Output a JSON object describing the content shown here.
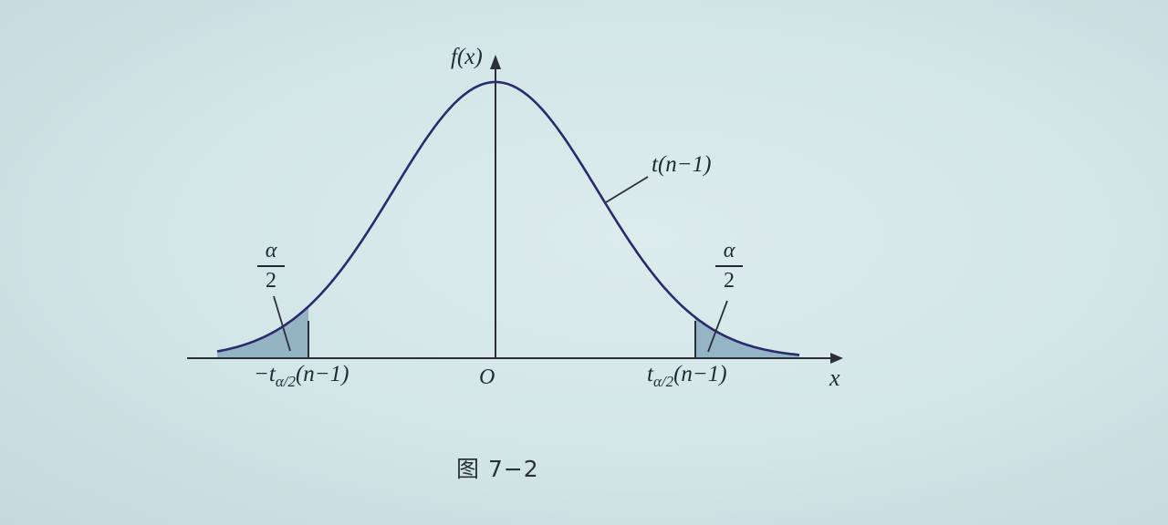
{
  "figure": {
    "y_axis_label": "f(x)",
    "x_axis_label": "x",
    "origin_label": "O",
    "curve_label": "t(n−1)",
    "left_tail": {
      "fraction_numerator": "α",
      "fraction_denominator": "2",
      "quantile_prefix": "−t",
      "quantile_subscript": "α/2",
      "quantile_suffix": "(n−1)"
    },
    "right_tail": {
      "fraction_numerator": "α",
      "fraction_denominator": "2",
      "quantile_prefix": "t",
      "quantile_subscript": "α/2",
      "quantile_suffix": "(n−1)"
    },
    "caption": "图 7−2"
  },
  "colors": {
    "ink": "#1e2a33",
    "curve": "#2a2a6e",
    "tail_fill": "#7fa3b8",
    "background": "#d4e6e8"
  }
}
